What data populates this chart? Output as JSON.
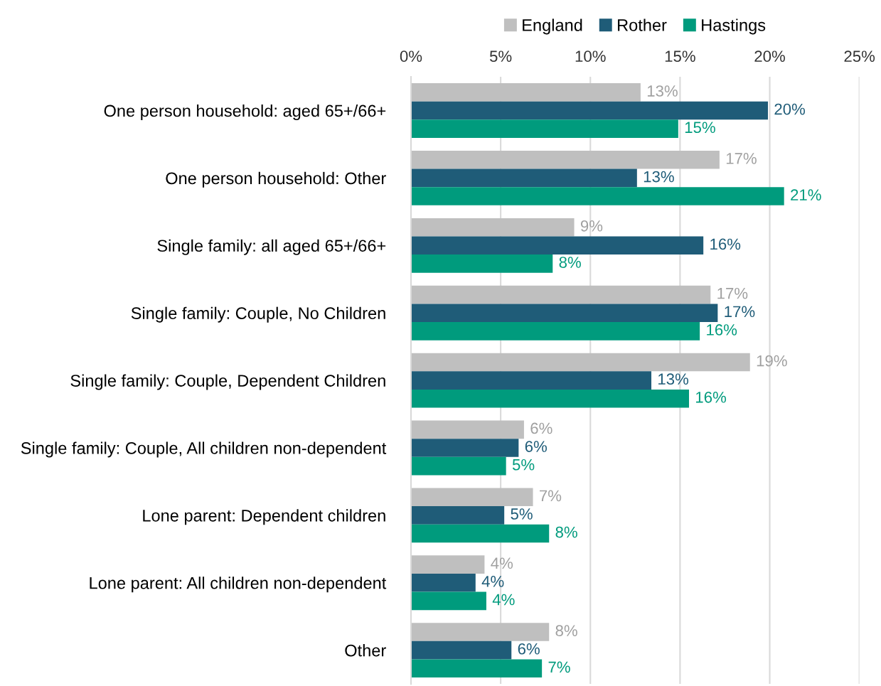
{
  "chart_data": {
    "type": "bar",
    "orientation": "horizontal",
    "categories": [
      "One person household: aged 65+/66+",
      "One person household: Other",
      "Single family: all aged 65+/66+",
      "Single family: Couple, No Children",
      "Single family: Couple, Dependent Children",
      "Single family: Couple, All children non-dependent",
      "Lone parent: Dependent children",
      "Lone parent: All children non-dependent",
      "Other"
    ],
    "series": [
      {
        "name": "England",
        "color": "#bfbfbf",
        "values": [
          12.8,
          17.2,
          9.1,
          16.7,
          18.9,
          6.3,
          6.8,
          4.1,
          7.7
        ],
        "value_labels": [
          "13%",
          "17%",
          "9%",
          "17%",
          "19%",
          "6%",
          "7%",
          "4%",
          "8%"
        ]
      },
      {
        "name": "Rother",
        "color": "#1f5c78",
        "values": [
          19.9,
          12.6,
          16.3,
          17.1,
          13.4,
          6.0,
          5.2,
          3.6,
          5.6
        ],
        "value_labels": [
          "20%",
          "13%",
          "16%",
          "17%",
          "13%",
          "6%",
          "5%",
          "4%",
          "6%"
        ]
      },
      {
        "name": "Hastings",
        "color": "#009b7d",
        "values": [
          14.9,
          20.8,
          7.9,
          16.1,
          15.5,
          5.3,
          7.7,
          4.2,
          7.3
        ],
        "value_labels": [
          "15%",
          "21%",
          "8%",
          "16%",
          "16%",
          "5%",
          "8%",
          "4%",
          "7%"
        ]
      }
    ],
    "xlim": [
      0,
      25
    ],
    "xticks": [
      {
        "value": 0,
        "label": "0%"
      },
      {
        "value": 5,
        "label": "5%"
      },
      {
        "value": 10,
        "label": "10%"
      },
      {
        "value": 15,
        "label": "15%"
      },
      {
        "value": 20,
        "label": "20%"
      },
      {
        "value": 25,
        "label": "25%"
      }
    ],
    "grid": "x",
    "legend": "top"
  }
}
